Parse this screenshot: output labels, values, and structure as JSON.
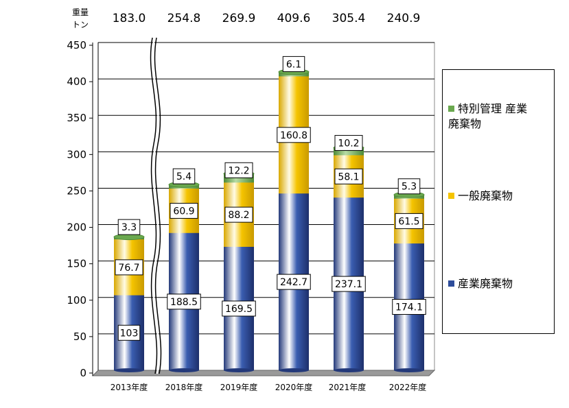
{
  "chart_data": {
    "type": "bar",
    "stacked": true,
    "unit_label_line1": "重量",
    "unit_label_line2": "トン",
    "categories": [
      "2013年度",
      "2018年度",
      "2019年度",
      "2020年度",
      "2021年度",
      "2022年度"
    ],
    "totals": [
      "183.0",
      "254.8",
      "269.9",
      "409.6",
      "305.4",
      "240.9"
    ],
    "series": [
      {
        "name": "産業廃棄物",
        "color": "#2E4D9B",
        "values": [
          103,
          188.5,
          169.5,
          242.7,
          237.1,
          174.1
        ],
        "labels": [
          "103",
          "188.5",
          "169.5",
          "242.7",
          "237.1",
          "174.1"
        ]
      },
      {
        "name": "一般廃棄物",
        "color": "#F5C400",
        "values": [
          76.7,
          60.9,
          88.2,
          160.8,
          58.1,
          61.5
        ],
        "labels": [
          "76.7",
          "60.9",
          "88.2",
          "160.8",
          "58.1",
          "61.5"
        ]
      },
      {
        "name": "特別管理 産業廃棄物",
        "color": "#6AA84F",
        "values": [
          3.3,
          5.4,
          12.2,
          6.1,
          10.2,
          5.3
        ],
        "labels": [
          "3.3",
          "5.4",
          "12.2",
          "6.1",
          "10.2",
          "5.3"
        ]
      }
    ],
    "ylim": [
      0,
      450
    ],
    "yticks": [
      "0",
      "50",
      "100",
      "150",
      "200",
      "250",
      "300",
      "350",
      "400",
      "450"
    ],
    "grid": true,
    "axis_break_after_category": "2013年度",
    "legend_position": "right"
  },
  "legend": {
    "items": [
      {
        "line1": "特別管理 産業",
        "line2": "廃棄物",
        "color": "#6AA84F"
      },
      {
        "line1": "一般廃棄物",
        "line2": "",
        "color": "#F5C400"
      },
      {
        "line1": "産業廃棄物",
        "line2": "",
        "color": "#2E4D9B"
      }
    ]
  }
}
